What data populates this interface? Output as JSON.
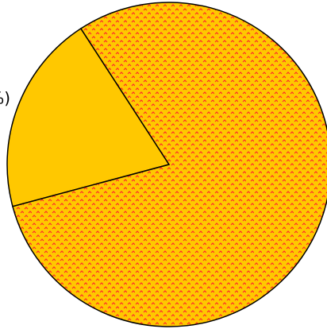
{
  "chart_data": {
    "type": "pie",
    "title": "",
    "start_angle_deg": -123,
    "direction": "counterclockwise",
    "slices": [
      {
        "label": "%)",
        "value": 20,
        "color": "#FFC800",
        "pattern": "none"
      },
      {
        "label": "",
        "value": 80,
        "color": "#FFC800",
        "pattern": "red-zigzag-dots"
      }
    ],
    "legend": "none",
    "edge_color": "#000000"
  }
}
